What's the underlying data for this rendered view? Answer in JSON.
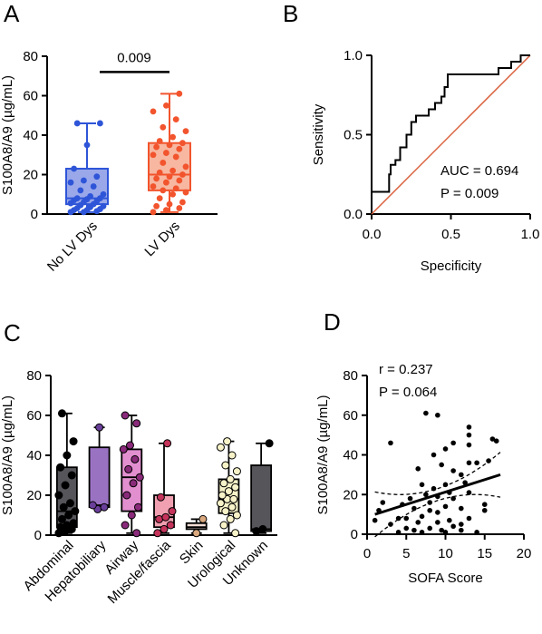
{
  "chart_data": [
    {
      "panel": "A",
      "type": "box",
      "ylabel": "S100A8/A9 (µg/mL)",
      "ylim": [
        0,
        80
      ],
      "yticks": [
        0,
        20,
        40,
        60,
        80
      ],
      "categories": [
        "No LV Dys",
        "LV Dys"
      ],
      "colors": {
        "No LV Dys": "#2e55d8",
        "LV Dys": "#f2542d"
      },
      "fills": {
        "No LV Dys": "#9aa8ea",
        "LV Dys": "#f7b7a1"
      },
      "boxes": [
        {
          "min": 1,
          "q1": 5,
          "median": 8,
          "q3": 23,
          "max": 46,
          "points": [
            1,
            1,
            1.5,
            2,
            2,
            2.5,
            3,
            3.5,
            4,
            4.5,
            5,
            5.5,
            6,
            6.5,
            7,
            7.5,
            8,
            8,
            9,
            10,
            12,
            14,
            16,
            17,
            19,
            23,
            35,
            46,
            46
          ]
        },
        {
          "min": 1,
          "q1": 12,
          "median": 20,
          "q3": 36,
          "max": 61,
          "points": [
            1,
            2,
            3,
            4,
            5,
            6,
            8,
            10,
            11,
            12,
            13,
            14,
            16,
            17,
            18,
            19,
            20,
            21,
            22,
            24,
            26,
            29,
            30,
            31,
            33,
            34,
            35,
            36,
            37,
            39,
            42,
            44,
            48,
            52,
            55,
            61
          ]
        }
      ],
      "bracket_label": "0.009"
    },
    {
      "panel": "B",
      "type": "line",
      "xlabel": "Specificity",
      "ylabel": "Sensitivity",
      "xlim": [
        0,
        1
      ],
      "ylim": [
        0,
        1
      ],
      "xticks": [
        "0.0",
        "0.5",
        "1.0"
      ],
      "yticks": [
        "0.0",
        "0.5",
        "1.0"
      ],
      "roc": [
        [
          0,
          0.14
        ],
        [
          0.11,
          0.14
        ],
        [
          0.11,
          0.25
        ],
        [
          0.12,
          0.25
        ],
        [
          0.12,
          0.31
        ],
        [
          0.15,
          0.31
        ],
        [
          0.15,
          0.34
        ],
        [
          0.18,
          0.34
        ],
        [
          0.18,
          0.42
        ],
        [
          0.22,
          0.42
        ],
        [
          0.22,
          0.5
        ],
        [
          0.25,
          0.5
        ],
        [
          0.25,
          0.58
        ],
        [
          0.28,
          0.58
        ],
        [
          0.28,
          0.62
        ],
        [
          0.36,
          0.62
        ],
        [
          0.36,
          0.66
        ],
        [
          0.4,
          0.66
        ],
        [
          0.4,
          0.7
        ],
        [
          0.44,
          0.7
        ],
        [
          0.44,
          0.74
        ],
        [
          0.46,
          0.74
        ],
        [
          0.46,
          0.8
        ],
        [
          0.48,
          0.8
        ],
        [
          0.48,
          0.88
        ],
        [
          0.8,
          0.88
        ],
        [
          0.8,
          0.92
        ],
        [
          0.88,
          0.92
        ],
        [
          0.88,
          0.96
        ],
        [
          0.94,
          0.96
        ],
        [
          0.94,
          1.0
        ],
        [
          1.0,
          1.0
        ]
      ],
      "reference_line": [
        [
          0,
          0
        ],
        [
          1,
          1
        ]
      ],
      "colors": {
        "roc": "#000000",
        "reference": "#d9603b"
      },
      "annotations": [
        "AUC = 0.694",
        "P = 0.009"
      ]
    },
    {
      "panel": "C",
      "type": "box",
      "ylabel": "S100A8/A9 (µg/mL)",
      "ylim": [
        0,
        80
      ],
      "yticks": [
        0,
        20,
        40,
        60,
        80
      ],
      "categories": [
        "Abdominal",
        "Hepatobiliary",
        "Airway",
        "Muscle/fascia",
        "Skin",
        "Urological",
        "Unknown"
      ],
      "colors": {
        "Abdominal": "#55555a",
        "Hepatobiliary": "#9a72c2",
        "Airway": "#e28fd0",
        "Muscle/fascia": "#f0a0b0",
        "Skin": "#f2ddd4",
        "Urological": "#f7f2c8",
        "Unknown": "#55555a"
      },
      "point_colors": {
        "Abdominal": "#000000",
        "Hepatobiliary": "#6a3f9a",
        "Airway": "#8a2a7a",
        "Muscle/fascia": "#c4335a",
        "Skin": "#d9a87e",
        "Urological": "#f7f2c8",
        "Unknown": "#000000"
      },
      "boxes": [
        {
          "min": 1,
          "q1": 4,
          "median": 12,
          "q3": 34,
          "max": 61,
          "points": [
            1,
            2,
            3,
            4,
            5,
            6,
            8,
            10,
            12,
            14,
            16,
            20,
            25,
            30,
            34,
            40,
            47,
            61
          ]
        },
        {
          "min": 13,
          "q1": 14,
          "median": 15,
          "q3": 44,
          "max": 54,
          "points": [
            13,
            14,
            15,
            54
          ]
        },
        {
          "min": 1,
          "q1": 12,
          "median": 29,
          "q3": 43,
          "max": 60,
          "points": [
            1,
            5,
            10,
            14,
            20,
            26,
            29,
            33,
            38,
            43,
            45,
            56,
            60
          ]
        },
        {
          "min": 1,
          "q1": 4,
          "median": 9,
          "q3": 20,
          "max": 46,
          "points": [
            1,
            3,
            5,
            8,
            9,
            12,
            19,
            46
          ]
        },
        {
          "min": 1,
          "q1": 3,
          "median": 4,
          "q3": 6,
          "max": 8,
          "points": [
            1,
            8
          ]
        },
        {
          "min": 1,
          "q1": 11,
          "median": 18,
          "q3": 28,
          "max": 47,
          "points": [
            1,
            5,
            8,
            10,
            12,
            14,
            16,
            18,
            18,
            20,
            22,
            24,
            26,
            28,
            32,
            35,
            40,
            44,
            47
          ]
        },
        {
          "min": 1,
          "q1": 2,
          "median": 3,
          "q3": 35,
          "max": 46,
          "points": [
            2,
            3,
            46
          ]
        }
      ]
    },
    {
      "panel": "D",
      "type": "scatter",
      "xlabel": "SOFA Score",
      "ylabel": "S100A8/A9 (µg/mL)",
      "xlim": [
        0,
        20
      ],
      "ylim": [
        0,
        80
      ],
      "xticks": [
        0,
        5,
        10,
        15,
        20
      ],
      "yticks": [
        0,
        20,
        40,
        60,
        80
      ],
      "points": [
        [
          1,
          7
        ],
        [
          1.5,
          12
        ],
        [
          2,
          16
        ],
        [
          3,
          46
        ],
        [
          3,
          5
        ],
        [
          4,
          8
        ],
        [
          4,
          1
        ],
        [
          4.5,
          15
        ],
        [
          5,
          3
        ],
        [
          5,
          8
        ],
        [
          5.5,
          18
        ],
        [
          6,
          13
        ],
        [
          6,
          2
        ],
        [
          6.5,
          6
        ],
        [
          6.5,
          33
        ],
        [
          7,
          25
        ],
        [
          7,
          9
        ],
        [
          7,
          1
        ],
        [
          7.5,
          20
        ],
        [
          7.5,
          61
        ],
        [
          8,
          16
        ],
        [
          8,
          3
        ],
        [
          8,
          12
        ],
        [
          8.5,
          40
        ],
        [
          8.5,
          23
        ],
        [
          9,
          19
        ],
        [
          9,
          6
        ],
        [
          9,
          60
        ],
        [
          9,
          11
        ],
        [
          9.5,
          2
        ],
        [
          9.5,
          35
        ],
        [
          10,
          14
        ],
        [
          10,
          43
        ],
        [
          10,
          25
        ],
        [
          10,
          1
        ],
        [
          10.5,
          7
        ],
        [
          10.5,
          21
        ],
        [
          11,
          46
        ],
        [
          11,
          18
        ],
        [
          11,
          4
        ],
        [
          11,
          32
        ],
        [
          12,
          30
        ],
        [
          12,
          13
        ],
        [
          12,
          2
        ],
        [
          12,
          5
        ],
        [
          12.5,
          26
        ],
        [
          13,
          54
        ],
        [
          13,
          50
        ],
        [
          13,
          45
        ],
        [
          13,
          36
        ],
        [
          13,
          21
        ],
        [
          13,
          8
        ],
        [
          14,
          36
        ],
        [
          14,
          1
        ],
        [
          15,
          15
        ],
        [
          15,
          12
        ],
        [
          15.5,
          37
        ],
        [
          16,
          48
        ],
        [
          16.5,
          47
        ]
      ],
      "fit_line": [
        [
          1,
          10
        ],
        [
          17,
          30
        ]
      ],
      "annotations": [
        "r = 0.237",
        "P = 0.064"
      ]
    }
  ],
  "panel_letters": [
    "A",
    "B",
    "C",
    "D"
  ]
}
